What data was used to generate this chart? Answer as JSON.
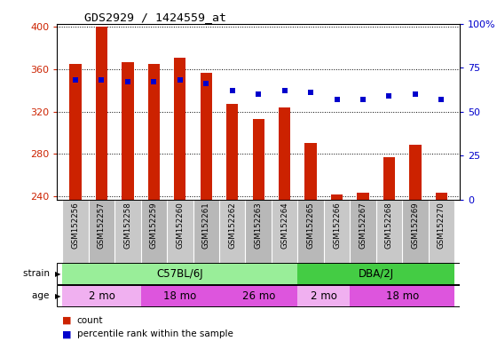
{
  "title": "GDS2929 / 1424559_at",
  "samples": [
    "GSM152256",
    "GSM152257",
    "GSM152258",
    "GSM152259",
    "GSM152260",
    "GSM152261",
    "GSM152262",
    "GSM152263",
    "GSM152264",
    "GSM152265",
    "GSM152266",
    "GSM152267",
    "GSM152268",
    "GSM152269",
    "GSM152270"
  ],
  "counts": [
    365,
    400,
    367,
    365,
    371,
    357,
    327,
    313,
    324,
    290,
    242,
    243,
    277,
    289,
    243
  ],
  "percentiles": [
    68,
    68,
    67,
    67,
    68,
    66,
    62,
    60,
    62,
    61,
    57,
    57,
    59,
    60,
    57
  ],
  "ylim_left": [
    237,
    403
  ],
  "ylim_right": [
    0,
    100
  ],
  "yticks_left": [
    240,
    280,
    320,
    360,
    400
  ],
  "yticks_right": [
    0,
    25,
    50,
    75,
    100
  ],
  "ytick_labels_right": [
    "0",
    "25",
    "50",
    "75",
    "100%"
  ],
  "bar_color": "#cc2200",
  "dot_color": "#0000cc",
  "bar_bottom": 237,
  "strain_groups": [
    {
      "label": "C57BL/6J",
      "start": 0,
      "end": 8,
      "color": "#99ee99"
    },
    {
      "label": "DBA/2J",
      "start": 9,
      "end": 14,
      "color": "#44cc44"
    }
  ],
  "age_groups": [
    {
      "label": "2 mo",
      "start": 0,
      "end": 2,
      "color": "#f0b0f0"
    },
    {
      "label": "18 mo",
      "start": 3,
      "end": 5,
      "color": "#dd55dd"
    },
    {
      "label": "26 mo",
      "start": 6,
      "end": 8,
      "color": "#dd55dd"
    },
    {
      "label": "2 mo",
      "start": 9,
      "end": 10,
      "color": "#f0b0f0"
    },
    {
      "label": "18 mo",
      "start": 11,
      "end": 14,
      "color": "#dd55dd"
    }
  ],
  "tick_label_color_left": "#cc2200",
  "tick_label_color_right": "#0000cc",
  "bg_color": "#ffffff"
}
